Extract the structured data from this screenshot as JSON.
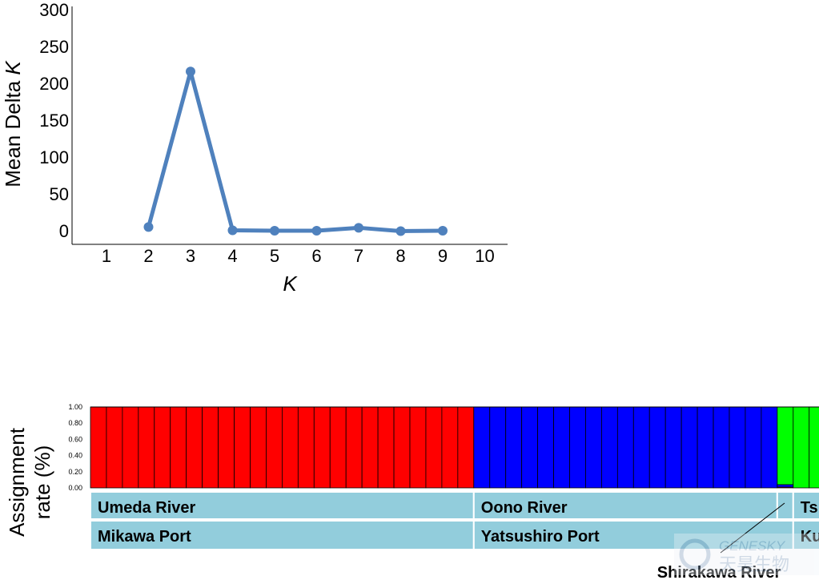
{
  "chart_data": [
    {
      "type": "line",
      "x": [
        1,
        2,
        3,
        4,
        5,
        6,
        7,
        8,
        9,
        10
      ],
      "series": [
        {
          "values": [
            null,
            5,
            216,
            0.5,
            0,
            0,
            4,
            -0.5,
            0,
            null
          ]
        }
      ],
      "xlabel": "K",
      "ylabel_prefix": "Mean Delta ",
      "ylabel_italic": "K",
      "ylim": [
        0,
        300
      ],
      "yticks": [
        0,
        50,
        100,
        150,
        200,
        250,
        300
      ],
      "xticks": [
        1,
        2,
        3,
        4,
        5,
        6,
        7,
        8,
        9,
        10
      ],
      "grid": false,
      "colors": {
        "line": "#4f81bd"
      }
    },
    {
      "type": "bar",
      "stacked": true,
      "ylabel_line1": "Assignment",
      "ylabel_line2": "rate (%)",
      "ylim": [
        0,
        1
      ],
      "yticks": [
        "0.00",
        "0.20",
        "0.40",
        "0.60",
        "0.80",
        "1.00"
      ],
      "series_colors": [
        "#ff0000",
        "#0000ff",
        "#00ff00"
      ],
      "groups": [
        {
          "count": 24,
          "values": [
            1.0,
            0.0,
            0.0
          ]
        },
        {
          "count": 19,
          "values": [
            0.0,
            1.0,
            0.0
          ]
        },
        {
          "count": 1,
          "values": [
            0.01,
            0.03,
            0.96
          ]
        },
        {
          "count": 2,
          "values": [
            0.0,
            0.0,
            1.0
          ]
        }
      ],
      "rivers": [
        "Umeda River",
        "Oono River",
        "",
        "Ts"
      ],
      "ports": [
        "Mikawa Port",
        "Yatsushiro Port",
        "Kum"
      ],
      "callout": "Shirakawa River",
      "colors": {
        "label_fill": "#92cddc"
      }
    }
  ],
  "watermark": {
    "latin": "GENESKY",
    "chinese": "天昊生物"
  }
}
